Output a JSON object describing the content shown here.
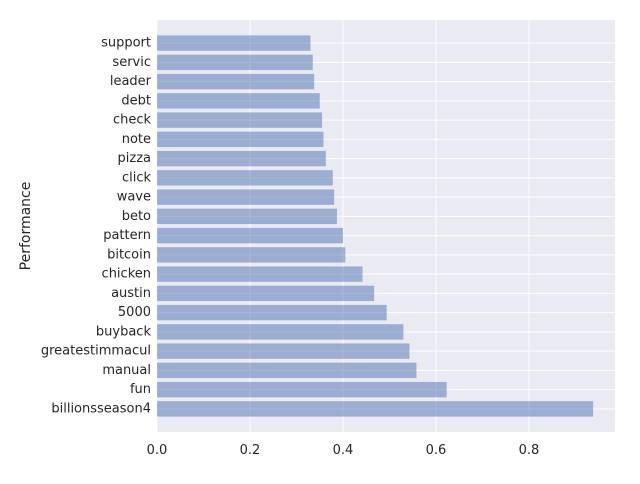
{
  "chart_data": {
    "type": "bar",
    "orientation": "horizontal",
    "categories": [
      "support",
      "servic",
      "leader",
      "debt",
      "check",
      "note",
      "pizza",
      "click",
      "wave",
      "beto",
      "pattern",
      "bitcoin",
      "chicken",
      "austin",
      "5000",
      "buyback",
      "greatestimmacul",
      "manual",
      "fun",
      "billionsseason4"
    ],
    "values": [
      0.33,
      0.335,
      0.338,
      0.35,
      0.355,
      0.358,
      0.363,
      0.378,
      0.381,
      0.387,
      0.4,
      0.405,
      0.442,
      0.467,
      0.494,
      0.53,
      0.543,
      0.558,
      0.623,
      0.938
    ],
    "xticks": [
      0.0,
      0.2,
      0.4,
      0.6,
      0.8
    ],
    "xtick_labels": [
      "0.0",
      "0.2",
      "0.4",
      "0.6",
      "0.8"
    ],
    "xlim": [
      0,
      0.985
    ],
    "title": "",
    "xlabel": "",
    "ylabel": "Performance",
    "grid": true,
    "background_color": "#eaeaf2",
    "grid_color": "#ffffff",
    "bar_color": "#4c72b0",
    "bar_opacity": 0.5
  }
}
